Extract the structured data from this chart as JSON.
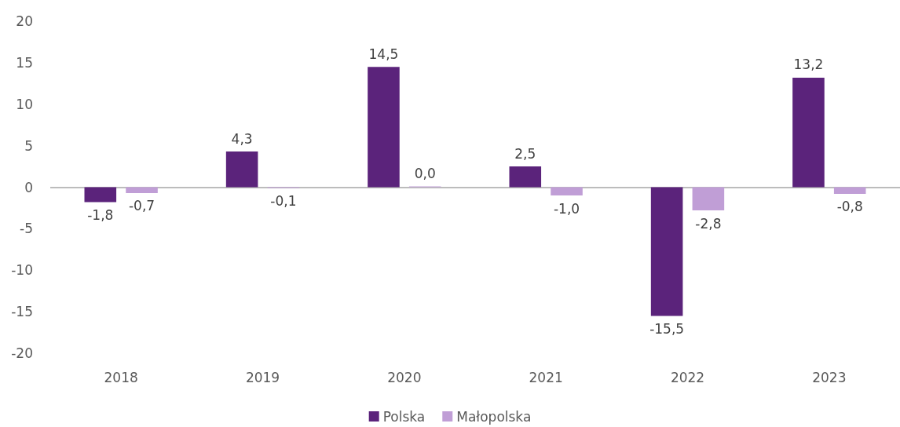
{
  "chart_data": {
    "type": "bar",
    "categories": [
      "2018",
      "2019",
      "2020",
      "2021",
      "2022",
      "2023"
    ],
    "series": [
      {
        "name": "Polska",
        "color": "#5b237b",
        "values": [
          -1.8,
          4.3,
          14.5,
          2.5,
          -15.5,
          13.2
        ],
        "value_labels": [
          "-1,8",
          "4,3",
          "14,5",
          "2,5",
          "-15,5",
          "13,2"
        ]
      },
      {
        "name": "Małopolska",
        "color": "#c09ed6",
        "values": [
          -0.7,
          -0.1,
          0.0,
          -1.0,
          -2.8,
          -0.8
        ],
        "value_labels": [
          "-0,7",
          "-0,1",
          "0,0",
          "-1,0",
          "-2,8",
          "-0,8"
        ]
      }
    ],
    "ylim": [
      -20,
      20
    ],
    "yticks": [
      -20,
      -15,
      -10,
      -5,
      0,
      5,
      10,
      15,
      20
    ],
    "ref_lines": [
      {
        "axis": "y",
        "value": 0,
        "color": "#a6a6a6"
      }
    ],
    "grid": false,
    "legend": "bottom"
  }
}
